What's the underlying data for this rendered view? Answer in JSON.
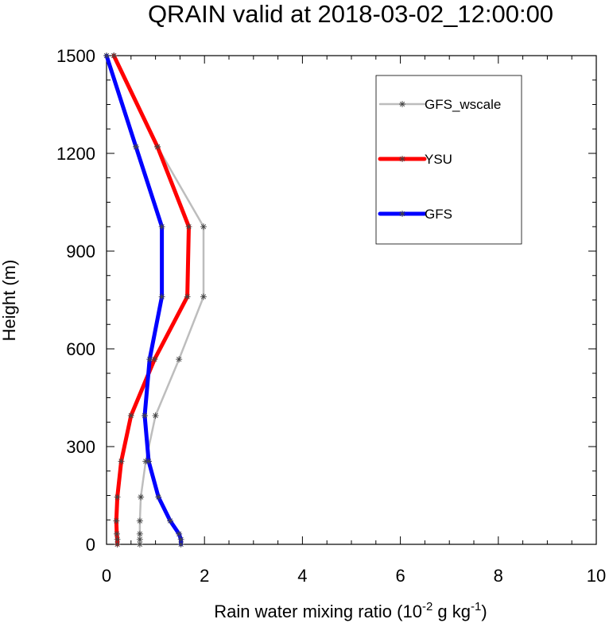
{
  "chart_data": {
    "type": "line",
    "title": "QRAIN valid at 2018-03-02_12:00:00",
    "xlabel": "Rain water mixing ratio (10",
    "xlabel_exp1": "-2",
    "xlabel_mid": " g kg",
    "xlabel_exp2": "-1",
    "xlabel_end": ")",
    "ylabel": "Height (m)",
    "xlim": [
      0,
      10
    ],
    "ylim": [
      0,
      1500
    ],
    "xticks": [
      "0",
      "2",
      "4",
      "6",
      "8",
      "10"
    ],
    "xtick_values": [
      0,
      2,
      4,
      6,
      8,
      10
    ],
    "yticks": [
      "0",
      "300",
      "600",
      "900",
      "1200",
      "1500"
    ],
    "ytick_values": [
      0,
      300,
      600,
      900,
      1200,
      1500
    ],
    "legend_position": "top-right",
    "series": [
      {
        "name": "GFS_wscale",
        "color": "#bdbdbd",
        "markers": true,
        "x": [
          0.68,
          0.68,
          0.68,
          0.68,
          0.7,
          0.8,
          1.0,
          1.48,
          1.98,
          1.98,
          1.04,
          0.15
        ],
        "y": [
          0,
          15,
          32,
          72,
          145,
          255,
          395,
          568,
          760,
          975,
          1220,
          1500
        ]
      },
      {
        "name": "YSU",
        "color": "#ff0000",
        "markers": true,
        "x": [
          0.22,
          0.22,
          0.21,
          0.2,
          0.22,
          0.3,
          0.5,
          0.98,
          1.65,
          1.68,
          1.04,
          0.15
        ],
        "y": [
          0,
          15,
          32,
          72,
          145,
          255,
          395,
          568,
          760,
          975,
          1220,
          1500
        ]
      },
      {
        "name": "GFS",
        "color": "#0000ff",
        "markers": true,
        "x": [
          1.52,
          1.52,
          1.48,
          1.3,
          1.06,
          0.86,
          0.78,
          0.88,
          1.13,
          1.13,
          0.6,
          0.0
        ],
        "y": [
          0,
          15,
          32,
          72,
          145,
          255,
          395,
          568,
          760,
          975,
          1220,
          1500
        ]
      }
    ]
  }
}
